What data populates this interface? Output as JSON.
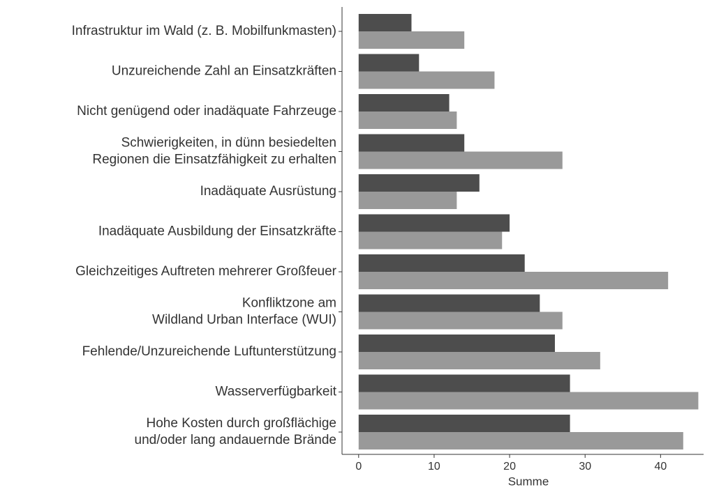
{
  "chart_data": {
    "type": "bar",
    "orientation": "horizontal",
    "x_label": "Summe",
    "categories": [
      [
        "Infrastruktur im Wald (z. B. Mobilfunkmasten)"
      ],
      [
        "Unzureichende Zahl an Einsatzkräften"
      ],
      [
        "Nicht genügend oder inadäquate Fahrzeuge"
      ],
      [
        "Schwierigkeiten, in dünn besiedelten",
        "Regionen die Einsatzfähigkeit zu erhalten"
      ],
      [
        "Inadäquate Ausrüstung"
      ],
      [
        "Inadäquate Ausbildung der Einsatzkräfte"
      ],
      [
        "Gleichzeitiges Auftreten mehrerer Großfeuer"
      ],
      [
        "Konfliktzone am",
        "Wildland Urban Interface (WUI)"
      ],
      [
        "Fehlende/Unzureichende Luftunterstützung"
      ],
      [
        "Wasserverfügbarkeit"
      ],
      [
        "Hohe Kosten durch großflächige",
        "und/oder lang andauernde Brände"
      ]
    ],
    "series": [
      {
        "color": "#4d4d4d",
        "values": [
          7,
          8,
          12,
          14,
          16,
          20,
          22,
          24,
          26,
          28,
          28
        ]
      },
      {
        "color": "#999999",
        "values": [
          14,
          18,
          13,
          27,
          13,
          19,
          41,
          27,
          32,
          45,
          43
        ]
      }
    ],
    "xlim": [
      -2.2,
      45.7
    ],
    "xticks": [
      0,
      10,
      20,
      30,
      40
    ]
  }
}
